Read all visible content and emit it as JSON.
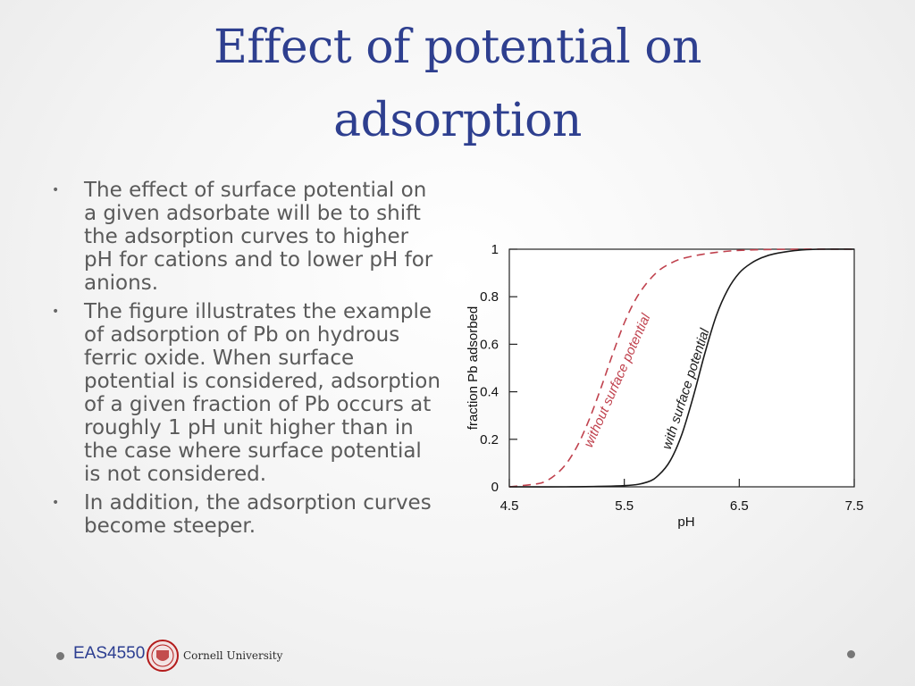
{
  "slide": {
    "title": "Effect of potential on adsorption",
    "bullets": [
      "The effect of surface potential on a given adsorbate will be to shift the adsorption curves to higher pH for cations and to lower pH for anions.",
      "The figure illustrates the example of adsorption of Pb on hydrous ferric oxide. When surface potential is considered, adsorption of a given fraction of Pb occurs at roughly 1 pH unit higher than in the case where surface potential is not considered.",
      "In addition, the adsorption curves become steeper."
    ]
  },
  "footer": {
    "course": "EAS4550",
    "university": "Cornell University"
  },
  "chart_data": {
    "type": "line",
    "xlabel": "pH",
    "ylabel": "fraction Pb adsorbed",
    "xlim": [
      4.5,
      7.5
    ],
    "ylim": [
      0,
      1
    ],
    "xticks": [
      "4.5",
      "5.5",
      "6.5",
      "7.5"
    ],
    "yticks": [
      "0",
      "0.2",
      "0.4",
      "0.6",
      "0.8",
      "1"
    ],
    "series": [
      {
        "name": "without surface potential",
        "color": "#c0424e",
        "style": "dashed",
        "x": [
          4.5,
          4.7,
          4.8,
          4.9,
          5.0,
          5.1,
          5.2,
          5.3,
          5.4,
          5.5,
          5.6,
          5.7,
          5.8,
          5.9,
          6.0,
          6.2,
          6.5,
          7.0,
          7.5
        ],
        "y": [
          0.0,
          0.01,
          0.02,
          0.05,
          0.1,
          0.18,
          0.29,
          0.42,
          0.56,
          0.69,
          0.79,
          0.86,
          0.91,
          0.94,
          0.96,
          0.98,
          0.995,
          1.0,
          1.0
        ]
      },
      {
        "name": "with surface potential",
        "color": "#1a1a1a",
        "style": "solid",
        "x": [
          4.5,
          5.0,
          5.5,
          5.7,
          5.8,
          5.9,
          6.0,
          6.1,
          6.2,
          6.3,
          6.4,
          6.5,
          6.6,
          6.7,
          6.8,
          7.0,
          7.2,
          7.5
        ],
        "y": [
          0.0,
          0.0,
          0.005,
          0.02,
          0.05,
          0.11,
          0.22,
          0.38,
          0.56,
          0.72,
          0.83,
          0.9,
          0.94,
          0.965,
          0.98,
          0.995,
          1.0,
          1.0
        ]
      }
    ]
  }
}
